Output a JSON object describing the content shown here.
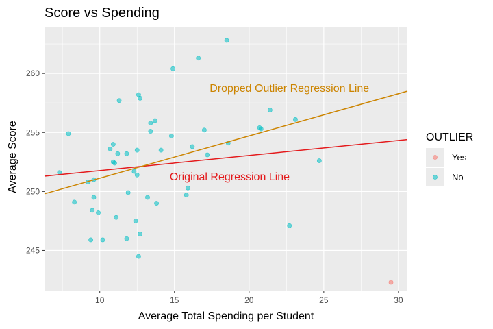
{
  "chart_data": {
    "type": "scatter",
    "title": "Score vs Spending",
    "xlabel": "Average Total Spending per Student",
    "ylabel": "Average Score",
    "xlim": [
      6.3,
      30.6
    ],
    "ylim": [
      241.6,
      263.9
    ],
    "xticks": [
      10,
      15,
      20,
      25,
      30
    ],
    "yticks": [
      245,
      250,
      255,
      260
    ],
    "grid": true,
    "legend": {
      "title": "OUTLIER",
      "position": "right",
      "entries": [
        {
          "label": "Yes",
          "color": "#F8766D"
        },
        {
          "label": "No",
          "color": "#00BFC4"
        }
      ]
    },
    "series": [
      {
        "name": "Yes",
        "color": "#F8766D",
        "points": [
          [
            29.5,
            242.3
          ]
        ]
      },
      {
        "name": "No",
        "color": "#00BFC4",
        "points": [
          [
            7.3,
            251.6
          ],
          [
            7.9,
            254.9
          ],
          [
            8.3,
            249.1
          ],
          [
            9.2,
            250.8
          ],
          [
            9.4,
            245.9
          ],
          [
            9.5,
            248.4
          ],
          [
            9.6,
            249.5
          ],
          [
            9.6,
            251.0
          ],
          [
            9.9,
            248.2
          ],
          [
            10.2,
            245.9
          ],
          [
            10.7,
            253.6
          ],
          [
            10.9,
            252.5
          ],
          [
            10.9,
            254.0
          ],
          [
            11.0,
            252.4
          ],
          [
            11.1,
            247.8
          ],
          [
            11.2,
            253.2
          ],
          [
            11.3,
            257.7
          ],
          [
            11.8,
            246.0
          ],
          [
            11.8,
            253.2
          ],
          [
            11.9,
            249.9
          ],
          [
            12.3,
            251.7
          ],
          [
            12.4,
            247.5
          ],
          [
            12.5,
            251.4
          ],
          [
            12.5,
            253.5
          ],
          [
            12.6,
            244.5
          ],
          [
            12.6,
            258.2
          ],
          [
            12.7,
            257.9
          ],
          [
            12.7,
            246.4
          ],
          [
            13.2,
            249.5
          ],
          [
            13.4,
            255.1
          ],
          [
            13.4,
            255.8
          ],
          [
            13.7,
            256.0
          ],
          [
            13.8,
            249.0
          ],
          [
            14.1,
            253.5
          ],
          [
            14.8,
            254.7
          ],
          [
            14.9,
            260.4
          ],
          [
            15.8,
            249.7
          ],
          [
            15.9,
            250.3
          ],
          [
            16.2,
            253.8
          ],
          [
            16.6,
            261.3
          ],
          [
            17.0,
            255.2
          ],
          [
            17.2,
            253.1
          ],
          [
            18.5,
            262.8
          ],
          [
            18.6,
            254.1
          ],
          [
            20.7,
            255.4
          ],
          [
            20.8,
            255.3
          ],
          [
            21.4,
            256.9
          ],
          [
            22.7,
            247.1
          ],
          [
            23.1,
            256.1
          ],
          [
            24.7,
            252.6
          ]
        ]
      }
    ],
    "lines": [
      {
        "label": "Original Regression Line",
        "color": "#E41A1C",
        "from": [
          6.3,
          251.3
        ],
        "to": [
          30.6,
          254.4
        ],
        "label_at": [
          18.7,
          251.3
        ]
      },
      {
        "label": "Dropped Outlier Regression Line",
        "color": "#CC8400",
        "from": [
          6.3,
          249.8
        ],
        "to": [
          30.6,
          258.5
        ],
        "label_at": [
          22.7,
          258.8
        ]
      }
    ]
  }
}
